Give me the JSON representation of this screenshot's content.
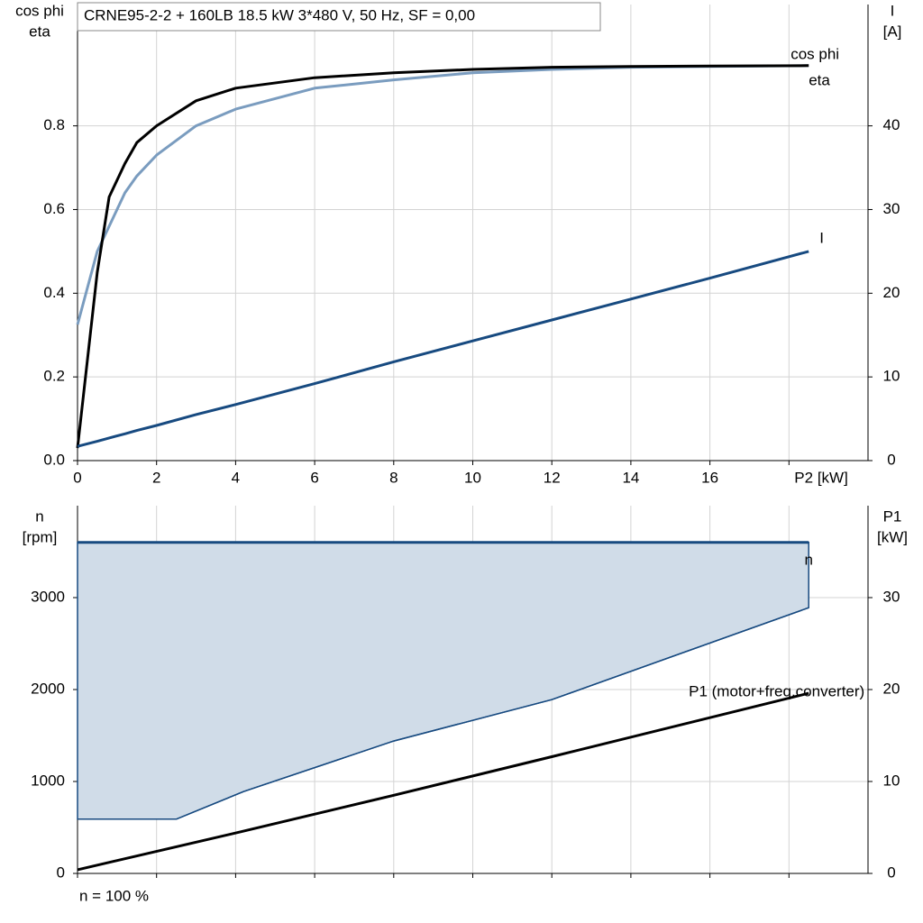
{
  "chart_data": [
    {
      "type": "line",
      "title": "CRNE95-2-2 + 160LB   18.5 kW   3*480 V, 50 Hz, SF = 0,00",
      "y_label": [
        "cos phi",
        "eta"
      ],
      "y2_label": [
        "I",
        "[A]"
      ],
      "x": [
        0,
        0.5,
        0.8,
        1.2,
        1.5,
        2,
        3,
        4,
        6,
        8,
        10,
        12,
        14,
        16,
        18.5
      ],
      "series": [
        {
          "name": "cos phi",
          "color": "#7a9cbf",
          "values": [
            0.325,
            0.5,
            0.56,
            0.64,
            0.68,
            0.73,
            0.8,
            0.84,
            0.89,
            0.91,
            0.927,
            0.935,
            0.94,
            0.942,
            0.944
          ]
        },
        {
          "name": "eta",
          "color": "#000000",
          "values": [
            0.03,
            0.45,
            0.63,
            0.71,
            0.76,
            0.8,
            0.86,
            0.89,
            0.915,
            0.927,
            0.935,
            0.94,
            0.942,
            0.943,
            0.944
          ]
        },
        {
          "name": "I",
          "color": "#174a80",
          "axis": "y2",
          "values": [
            1.7,
            2.3,
            2.7,
            3.2,
            3.6,
            4.2,
            5.5,
            6.7,
            9.2,
            11.8,
            14.3,
            16.8,
            19.3,
            21.8,
            25
          ]
        }
      ],
      "xlim": [
        0,
        20
      ],
      "xticks": [
        0,
        2,
        4,
        6,
        8,
        10,
        12,
        14,
        16,
        {
          "value": 18,
          "label": "P2 [kW]"
        }
      ],
      "ylim": [
        0,
        1.09
      ],
      "yticks": [
        {
          "value": 0,
          "label": "0.0"
        },
        0.2,
        0.4,
        0.6,
        0.8
      ],
      "y2lim": [
        0,
        54.5
      ],
      "y2ticks": [
        0,
        10,
        20,
        30,
        40
      ],
      "grid": true
    },
    {
      "type": "area",
      "y_label": [
        "n",
        "[rpm]"
      ],
      "y2_label": [
        "P1",
        "[kW]"
      ],
      "note": "n = 100 %",
      "x": [
        0,
        2.5,
        4.2,
        8,
        12,
        18.5
      ],
      "series": [
        {
          "name": "n",
          "color": "#174a80",
          "fill": "#d0dce8",
          "values": [
            3600,
            3600,
            3600,
            3600,
            3600,
            3600
          ],
          "lower": [
            590,
            590,
            890,
            1440,
            1890,
            2890
          ]
        },
        {
          "name": "P1 (motor+freq.converter)",
          "color": "#000000",
          "axis": "y2",
          "values": [
            0.4,
            2.9,
            4.6,
            8.5,
            12.7,
            19.6
          ]
        }
      ],
      "xlim": [
        0,
        20
      ],
      "xticks": [
        0,
        2,
        4,
        6,
        8,
        10,
        12,
        14,
        16,
        18
      ],
      "ylim": [
        0,
        4000
      ],
      "yticks": [
        0,
        1000,
        2000,
        3000
      ],
      "y2lim": [
        0,
        40
      ],
      "y2ticks": [
        0,
        10,
        20,
        30
      ],
      "grid": true
    }
  ]
}
